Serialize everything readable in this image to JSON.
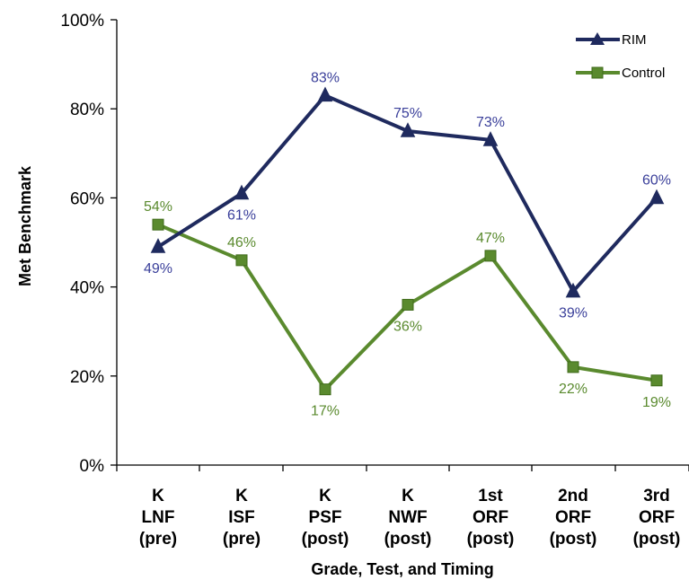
{
  "chart_data": {
    "type": "line",
    "xlabel": "Grade, Test, and Timing",
    "ylabel": "Met Benchmark",
    "ylim": [
      0,
      100
    ],
    "yticks": [
      "0%",
      "20%",
      "40%",
      "60%",
      "80%",
      "100%"
    ],
    "ytick_values": [
      0,
      20,
      40,
      60,
      80,
      100
    ],
    "categories": [
      [
        "K",
        "LNF",
        "(pre)"
      ],
      [
        "K",
        "ISF",
        "(pre)"
      ],
      [
        "K",
        "PSF",
        "(post)"
      ],
      [
        "K",
        "NWF",
        "(post)"
      ],
      [
        "1st",
        "ORF",
        "(post)"
      ],
      [
        "2nd",
        "ORF",
        "(post)"
      ],
      [
        "3rd",
        "ORF",
        "(post)"
      ]
    ],
    "grid": false,
    "legend_position": "top-right",
    "series": [
      {
        "name": "RIM",
        "color": "#1f2a5e",
        "label_color": "#3a3f9a",
        "marker": "triangle",
        "values": [
          49,
          61,
          83,
          75,
          73,
          39,
          60
        ],
        "labels": [
          "49%",
          "61%",
          "83%",
          "75%",
          "73%",
          "39%",
          "60%"
        ],
        "label_side": [
          "below",
          "below",
          "above",
          "above",
          "above",
          "below",
          "above"
        ]
      },
      {
        "name": "Control",
        "color": "#5a8a2e",
        "label_color": "#5a8a2e",
        "marker": "square",
        "values": [
          54,
          46,
          17,
          36,
          47,
          22,
          19
        ],
        "labels": [
          "54%",
          "46%",
          "17%",
          "36%",
          "47%",
          "22%",
          "19%"
        ],
        "label_side": [
          "above",
          "above",
          "below",
          "below",
          "above",
          "below",
          "below"
        ]
      }
    ]
  }
}
